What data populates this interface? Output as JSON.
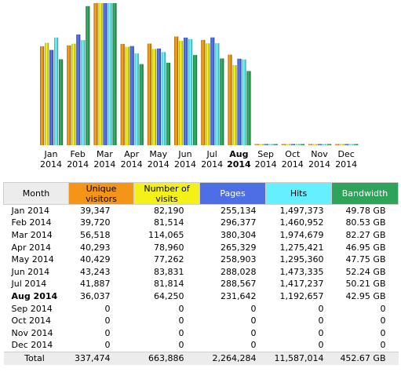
{
  "chart_data": {
    "type": "bar",
    "categories": [
      "Jan",
      "Feb",
      "Mar",
      "Apr",
      "May",
      "Jun",
      "Jul",
      "Aug",
      "Sep",
      "Oct",
      "Nov",
      "Dec"
    ],
    "year": "2014",
    "current_month": "Aug",
    "series": [
      {
        "key": "visitors",
        "values": [
          39347,
          39720,
          56518,
          40293,
          40429,
          43243,
          41887,
          36037,
          0,
          0,
          0,
          0
        ]
      },
      {
        "key": "visits",
        "values": [
          82190,
          81514,
          114065,
          78960,
          77262,
          83831,
          81814,
          64250,
          0,
          0,
          0,
          0
        ]
      },
      {
        "key": "pages",
        "values": [
          255134,
          296377,
          380304,
          265329,
          258903,
          288028,
          288567,
          231642,
          0,
          0,
          0,
          0
        ]
      },
      {
        "key": "hits",
        "values": [
          1497373,
          1460952,
          1974679,
          1275421,
          1295360,
          1473335,
          1417237,
          1192657,
          0,
          0,
          0,
          0
        ]
      },
      {
        "key": "bandwidth",
        "values": [
          49.78,
          80.53,
          82.27,
          46.95,
          47.75,
          52.24,
          50.21,
          42.95,
          0,
          0,
          0,
          0
        ]
      }
    ]
  },
  "colors": {
    "visitors": "#f49518",
    "visits": "#f4f119",
    "pages": "#4d6ee5",
    "hits": "#66f0ff",
    "bandwidth": "#2ea35a"
  },
  "table": {
    "headers": {
      "month": "Month",
      "visitors": "Unique visitors",
      "visits": "Number of visits",
      "pages": "Pages",
      "hits": "Hits",
      "bandwidth": "Bandwidth"
    },
    "rows": [
      {
        "month": "Jan 2014",
        "visitors": "39,347",
        "visits": "82,190",
        "pages": "255,134",
        "hits": "1,497,373",
        "bandwidth": "49.78 GB"
      },
      {
        "month": "Feb 2014",
        "visitors": "39,720",
        "visits": "81,514",
        "pages": "296,377",
        "hits": "1,460,952",
        "bandwidth": "80.53 GB"
      },
      {
        "month": "Mar 2014",
        "visitors": "56,518",
        "visits": "114,065",
        "pages": "380,304",
        "hits": "1,974,679",
        "bandwidth": "82.27 GB"
      },
      {
        "month": "Apr 2014",
        "visitors": "40,293",
        "visits": "78,960",
        "pages": "265,329",
        "hits": "1,275,421",
        "bandwidth": "46.95 GB"
      },
      {
        "month": "May 2014",
        "visitors": "40,429",
        "visits": "77,262",
        "pages": "258,903",
        "hits": "1,295,360",
        "bandwidth": "47.75 GB"
      },
      {
        "month": "Jun 2014",
        "visitors": "43,243",
        "visits": "83,831",
        "pages": "288,028",
        "hits": "1,473,335",
        "bandwidth": "52.24 GB"
      },
      {
        "month": "Jul 2014",
        "visitors": "41,887",
        "visits": "81,814",
        "pages": "288,567",
        "hits": "1,417,237",
        "bandwidth": "50.21 GB"
      },
      {
        "month": "Aug 2014",
        "visitors": "36,037",
        "visits": "64,250",
        "pages": "231,642",
        "hits": "1,192,657",
        "bandwidth": "42.95 GB"
      },
      {
        "month": "Sep 2014",
        "visitors": "0",
        "visits": "0",
        "pages": "0",
        "hits": "0",
        "bandwidth": "0"
      },
      {
        "month": "Oct 2014",
        "visitors": "0",
        "visits": "0",
        "pages": "0",
        "hits": "0",
        "bandwidth": "0"
      },
      {
        "month": "Nov 2014",
        "visitors": "0",
        "visits": "0",
        "pages": "0",
        "hits": "0",
        "bandwidth": "0"
      },
      {
        "month": "Dec 2014",
        "visitors": "0",
        "visits": "0",
        "pages": "0",
        "hits": "0",
        "bandwidth": "0"
      }
    ],
    "total": {
      "label": "Total",
      "visitors": "337,474",
      "visits": "663,886",
      "pages": "2,264,284",
      "hits": "11,587,014",
      "bandwidth": "452.67 GB"
    }
  }
}
